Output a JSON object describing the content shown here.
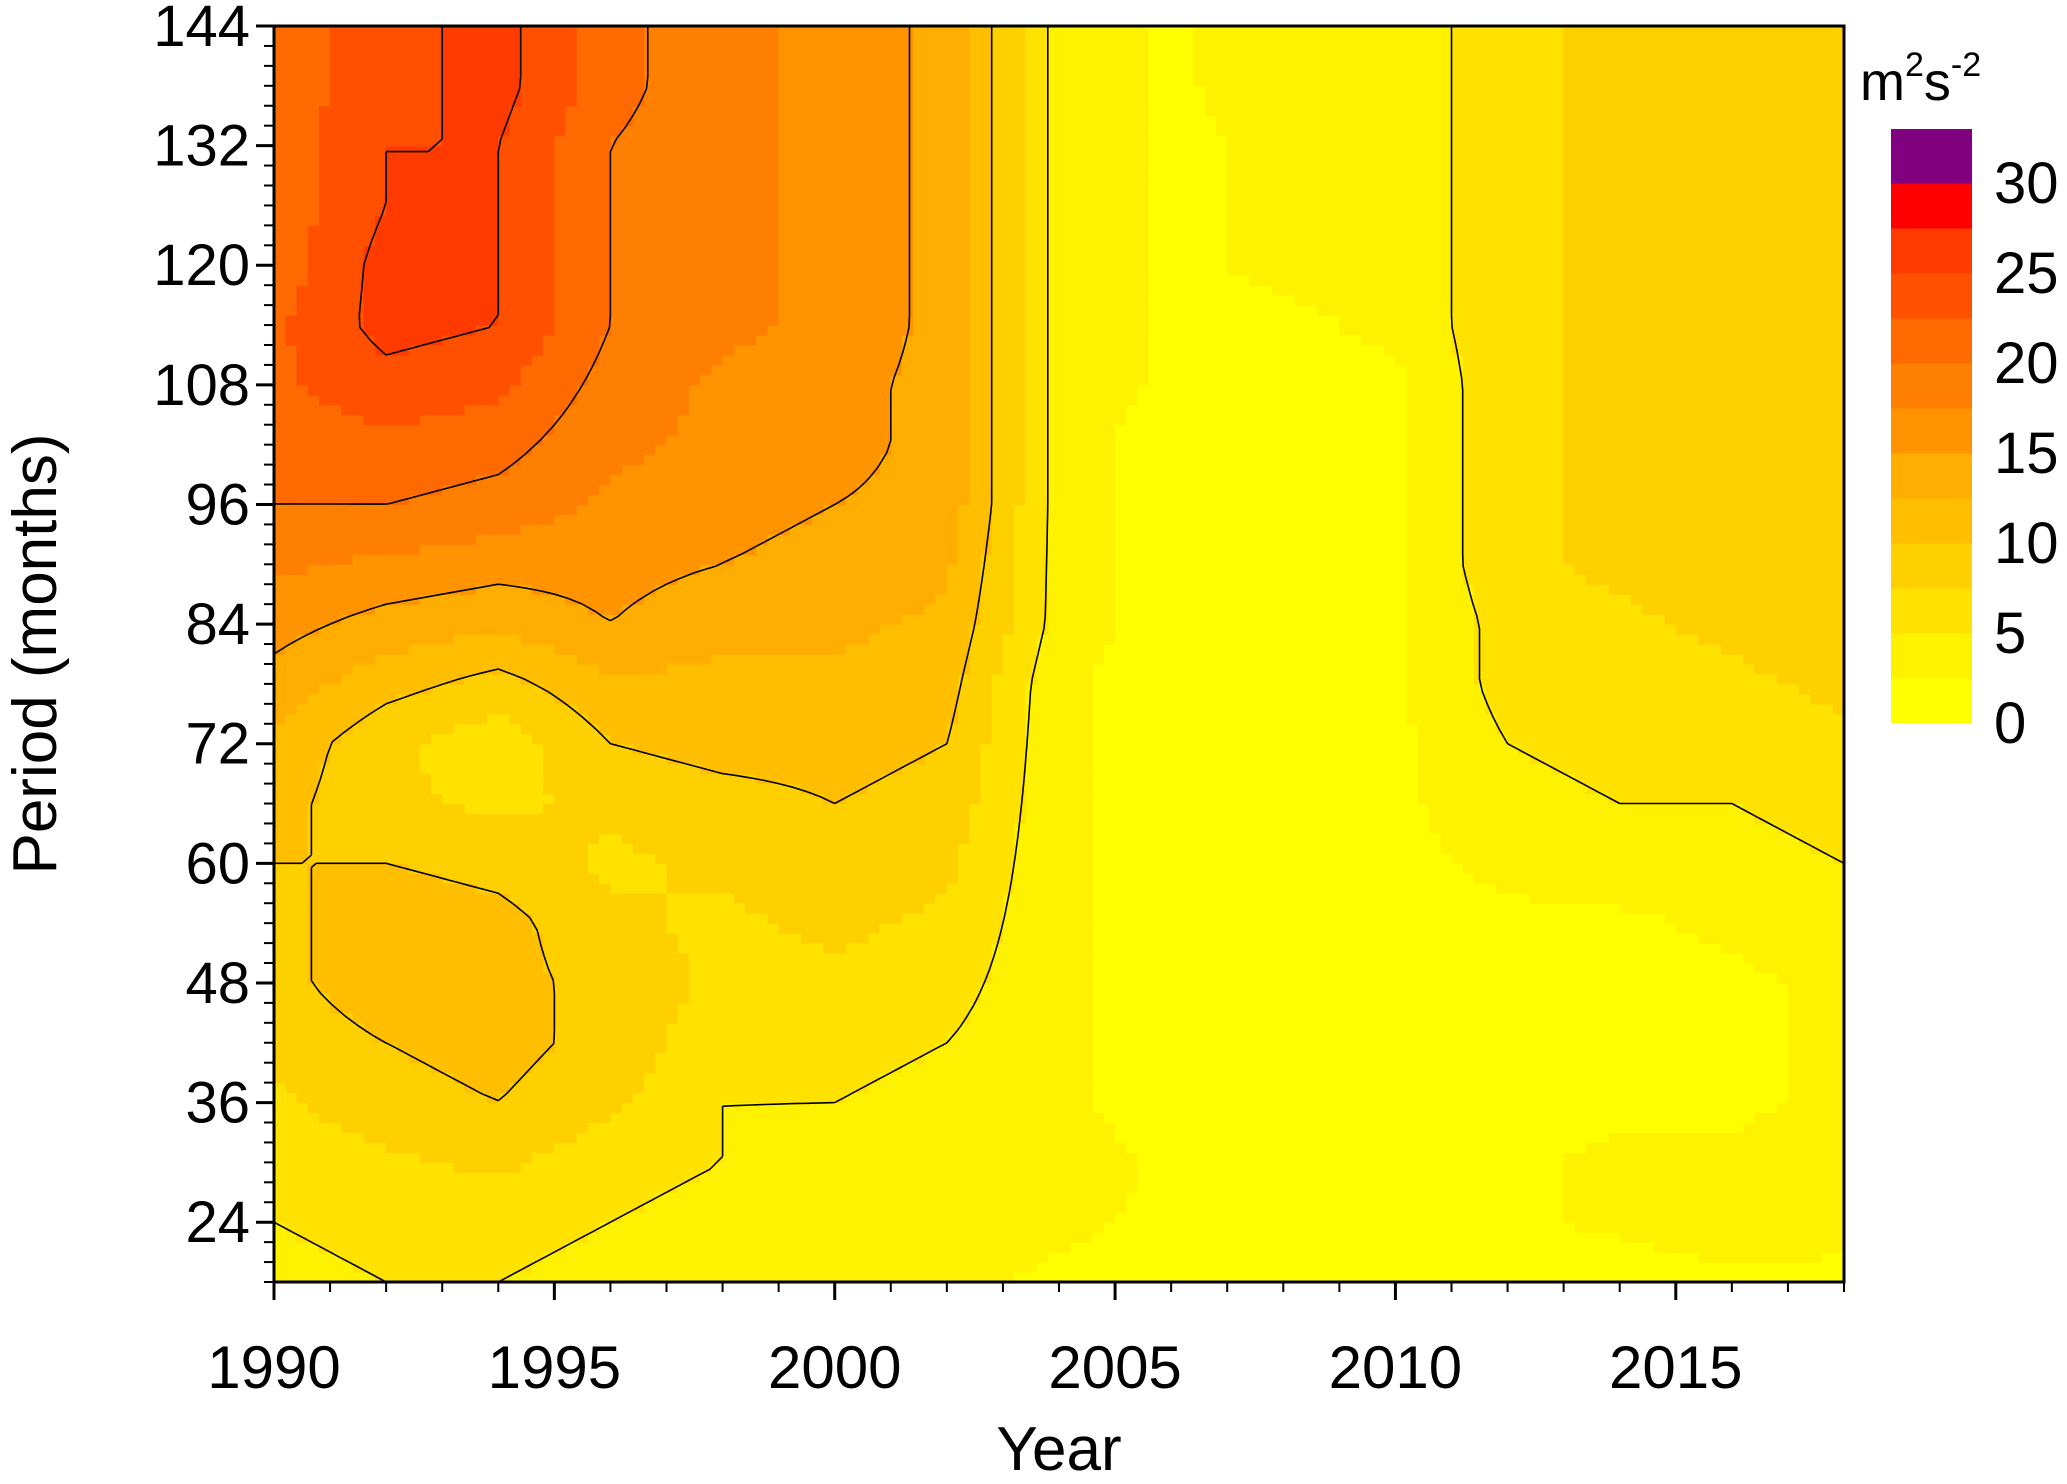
{
  "chart_data": {
    "type": "heatmap",
    "subtype": "wavelet power contour (filled contours with black isolines)",
    "title": "",
    "xlabel": "Year",
    "ylabel": "Period (months)",
    "xlim": [
      1990,
      2018
    ],
    "ylim": [
      18,
      144
    ],
    "xticks": [
      1990,
      1995,
      2000,
      2005,
      2010,
      2015
    ],
    "yticks": [
      24,
      36,
      48,
      60,
      72,
      84,
      96,
      108,
      120,
      132,
      144
    ],
    "grid": false,
    "colorbar": {
      "placement": "right",
      "unit_base": "m",
      "unit_base_exp": "2",
      "unit_second": "s",
      "unit_second_exp": "-2",
      "range": [
        0,
        33
      ],
      "tick_values": [
        0,
        5,
        10,
        15,
        20,
        25,
        30
      ],
      "tick_labels": [
        "0",
        "5",
        "10",
        "15",
        "20",
        "25",
        "30"
      ],
      "levels": [
        {
          "from": 0,
          "to": 2.5,
          "color": "#FFFF00"
        },
        {
          "from": 2.5,
          "to": 5,
          "color": "#FFF200"
        },
        {
          "from": 5,
          "to": 7.5,
          "color": "#FFE200"
        },
        {
          "from": 7.5,
          "to": 10,
          "color": "#FFD000"
        },
        {
          "from": 10,
          "to": 12.5,
          "color": "#FFBF00"
        },
        {
          "from": 12.5,
          "to": 15,
          "color": "#FFAE00"
        },
        {
          "from": 15,
          "to": 17.5,
          "color": "#FF9400"
        },
        {
          "from": 17.5,
          "to": 20,
          "color": "#FF7F00"
        },
        {
          "from": 20,
          "to": 22.5,
          "color": "#FF6A00"
        },
        {
          "from": 22.5,
          "to": 25,
          "color": "#FF5000"
        },
        {
          "from": 25,
          "to": 27.5,
          "color": "#FF3A00"
        },
        {
          "from": 27.5,
          "to": 30,
          "color": "#FF0000"
        },
        {
          "from": 30,
          "to": 33,
          "color": "#800080"
        }
      ]
    },
    "contour_isolines_at": [
      5,
      10,
      15,
      20,
      25
    ],
    "power_grid": {
      "years": [
        1990,
        1992,
        1994,
        1996,
        1998,
        2000,
        2002,
        2004,
        2006,
        2008,
        2010,
        2012,
        2014,
        2016,
        2018
      ],
      "periods": [
        18,
        24,
        30,
        36,
        42,
        48,
        54,
        60,
        66,
        72,
        78,
        84,
        90,
        96,
        102,
        108,
        114,
        120,
        126,
        132,
        138,
        144
      ],
      "values": [
        [
          4,
          5,
          5,
          4,
          3,
          3,
          3,
          2,
          1,
          1,
          1,
          1,
          1,
          2,
          2
        ],
        [
          5,
          6,
          6,
          5,
          4,
          3,
          4,
          3,
          2,
          1,
          1,
          2,
          3,
          4,
          3
        ],
        [
          6,
          7,
          8,
          6,
          5,
          4,
          5,
          4,
          2,
          1,
          2,
          2,
          3,
          3,
          4
        ],
        [
          7,
          9,
          10,
          8,
          5,
          5,
          4,
          3,
          1,
          1,
          1,
          2,
          2,
          2,
          3
        ],
        [
          8,
          10,
          11,
          9,
          6,
          6,
          5,
          3,
          1,
          1,
          1,
          2,
          2,
          2,
          3
        ],
        [
          9,
          12,
          11,
          9,
          7,
          7,
          6,
          3,
          1,
          1,
          1,
          2,
          2,
          2,
          3
        ],
        [
          9,
          12,
          11,
          8,
          7,
          8,
          7,
          3,
          1,
          1,
          1,
          2,
          2,
          3,
          4
        ],
        [
          10,
          10,
          9,
          7,
          8,
          9,
          8,
          3,
          1,
          1,
          2,
          3,
          4,
          4,
          5
        ],
        [
          11,
          8,
          7,
          8,
          9,
          10,
          9,
          3,
          1,
          1,
          2,
          4,
          5,
          5,
          6
        ],
        [
          12,
          8,
          6,
          10,
          11,
          11,
          10,
          3,
          1,
          1,
          2,
          5,
          6,
          6,
          7
        ],
        [
          14,
          11,
          9,
          12,
          12,
          12,
          11,
          3,
          1,
          1,
          2,
          6,
          7,
          7,
          8
        ],
        [
          16,
          14,
          13,
          15,
          13,
          13,
          12,
          4,
          1,
          1,
          2,
          6,
          7,
          8,
          9
        ],
        [
          18,
          17,
          16,
          16,
          15,
          14,
          13,
          4,
          1,
          1,
          2,
          7,
          8,
          9,
          9
        ],
        [
          20,
          20,
          19,
          17,
          16,
          15,
          14,
          4,
          1,
          1,
          2,
          7,
          8,
          9,
          10
        ],
        [
          21,
          22,
          21,
          18,
          17,
          16,
          14,
          4,
          1,
          1,
          2,
          7,
          8,
          9,
          10
        ],
        [
          22,
          24,
          23,
          19,
          17,
          16,
          14,
          4,
          2,
          2,
          2,
          7,
          8,
          9,
          10
        ],
        [
          22,
          26,
          25,
          20,
          18,
          17,
          14,
          4,
          2,
          2,
          3,
          7,
          8,
          9,
          10
        ],
        [
          21,
          26,
          25,
          20,
          18,
          17,
          14,
          4,
          2,
          3,
          3,
          7,
          8,
          9,
          10
        ],
        [
          21,
          25,
          25,
          20,
          18,
          17,
          14,
          4,
          2,
          3,
          3,
          7,
          8,
          9,
          10
        ],
        [
          21,
          25,
          25,
          20,
          18,
          17,
          14,
          4,
          2,
          3,
          3,
          7,
          8,
          9,
          10
        ],
        [
          21,
          24,
          26,
          21,
          18,
          17,
          14,
          4,
          2,
          4,
          3,
          7,
          8,
          9,
          10
        ],
        [
          21,
          24,
          26,
          21,
          18,
          17,
          14,
          4,
          2,
          4,
          3,
          7,
          8,
          9,
          10
        ]
      ]
    }
  }
}
